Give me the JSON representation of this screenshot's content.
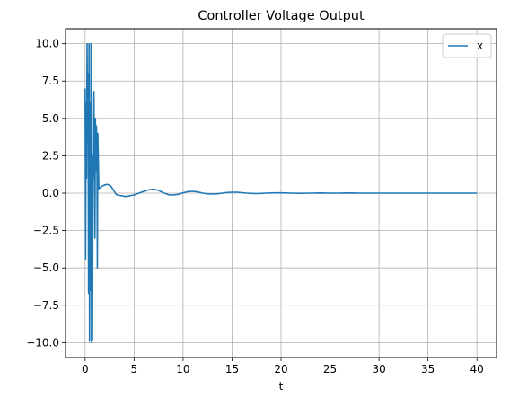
{
  "chart_data": {
    "type": "line",
    "title": "Controller Voltage Output",
    "xlabel": "t",
    "ylabel": "",
    "xlim": [
      -2,
      42
    ],
    "ylim": [
      -11,
      11
    ],
    "xticks": [
      0,
      5,
      10,
      15,
      20,
      25,
      30,
      35,
      40
    ],
    "yticks": [
      -10.0,
      -7.5,
      -5.0,
      -2.5,
      0.0,
      2.5,
      5.0,
      7.5,
      10.0
    ],
    "xtick_labels": [
      "0",
      "5",
      "10",
      "15",
      "20",
      "25",
      "30",
      "35",
      "40"
    ],
    "ytick_labels": [
      "−10.0",
      "−7.5",
      "−5.0",
      "−2.5",
      "0.0",
      "2.5",
      "5.0",
      "7.5",
      "10.0"
    ],
    "grid": true,
    "legend_position": "top-right",
    "series": [
      {
        "name": "x",
        "color": "#1f77b4",
        "x": [
          0.0,
          0.05,
          0.1,
          0.15,
          0.2,
          0.25,
          0.3,
          0.35,
          0.4,
          0.45,
          0.5,
          0.55,
          0.6,
          0.65,
          0.7,
          0.75,
          0.8,
          0.85,
          0.9,
          0.95,
          1.0,
          1.05,
          1.1,
          1.15,
          1.2,
          1.25,
          1.3,
          1.35,
          1.4,
          1.5,
          1.7,
          2.0,
          2.3,
          2.6,
          2.9,
          3.2,
          3.5,
          3.8,
          4.1,
          4.4,
          4.7,
          5.0,
          5.5,
          6.0,
          6.5,
          7.0,
          7.5,
          8.0,
          8.5,
          9.0,
          9.5,
          10.0,
          10.5,
          11.0,
          11.5,
          12.0,
          12.5,
          13.0,
          13.5,
          14.0,
          14.5,
          15.0,
          15.5,
          16.0,
          16.5,
          17.0,
          17.5,
          18.0,
          18.5,
          19.0,
          19.5,
          20.0,
          21.0,
          22.0,
          23.0,
          24.0,
          25.0,
          26.0,
          27.0,
          28.0,
          29.0,
          30.0,
          32.0,
          34.0,
          36.0,
          38.0,
          40.0
        ],
        "y": [
          7.0,
          -4.4,
          6.0,
          1.0,
          10.0,
          3.5,
          8.0,
          -6.7,
          10.0,
          -9.9,
          6.0,
          -6.5,
          10.0,
          -10.0,
          2.0,
          -9.8,
          2.5,
          1.0,
          6.8,
          2.0,
          -3.0,
          5.0,
          1.5,
          4.5,
          3.5,
          -5.0,
          4.0,
          2.2,
          0.3,
          0.35,
          0.45,
          0.55,
          0.58,
          0.5,
          0.2,
          -0.1,
          -0.15,
          -0.18,
          -0.22,
          -0.2,
          -0.15,
          -0.12,
          0.0,
          0.12,
          0.22,
          0.26,
          0.18,
          0.02,
          -0.1,
          -0.12,
          -0.08,
          0.02,
          0.1,
          0.12,
          0.08,
          0.0,
          -0.05,
          -0.06,
          -0.04,
          0.0,
          0.04,
          0.06,
          0.06,
          0.03,
          0.0,
          -0.02,
          -0.03,
          -0.02,
          0.0,
          0.01,
          0.02,
          0.02,
          0.0,
          -0.01,
          0.0,
          0.01,
          0.0,
          0.0,
          0.01,
          0.0,
          0.0,
          0.0,
          0.0,
          0.0,
          0.0,
          0.0,
          0.0
        ]
      }
    ]
  }
}
